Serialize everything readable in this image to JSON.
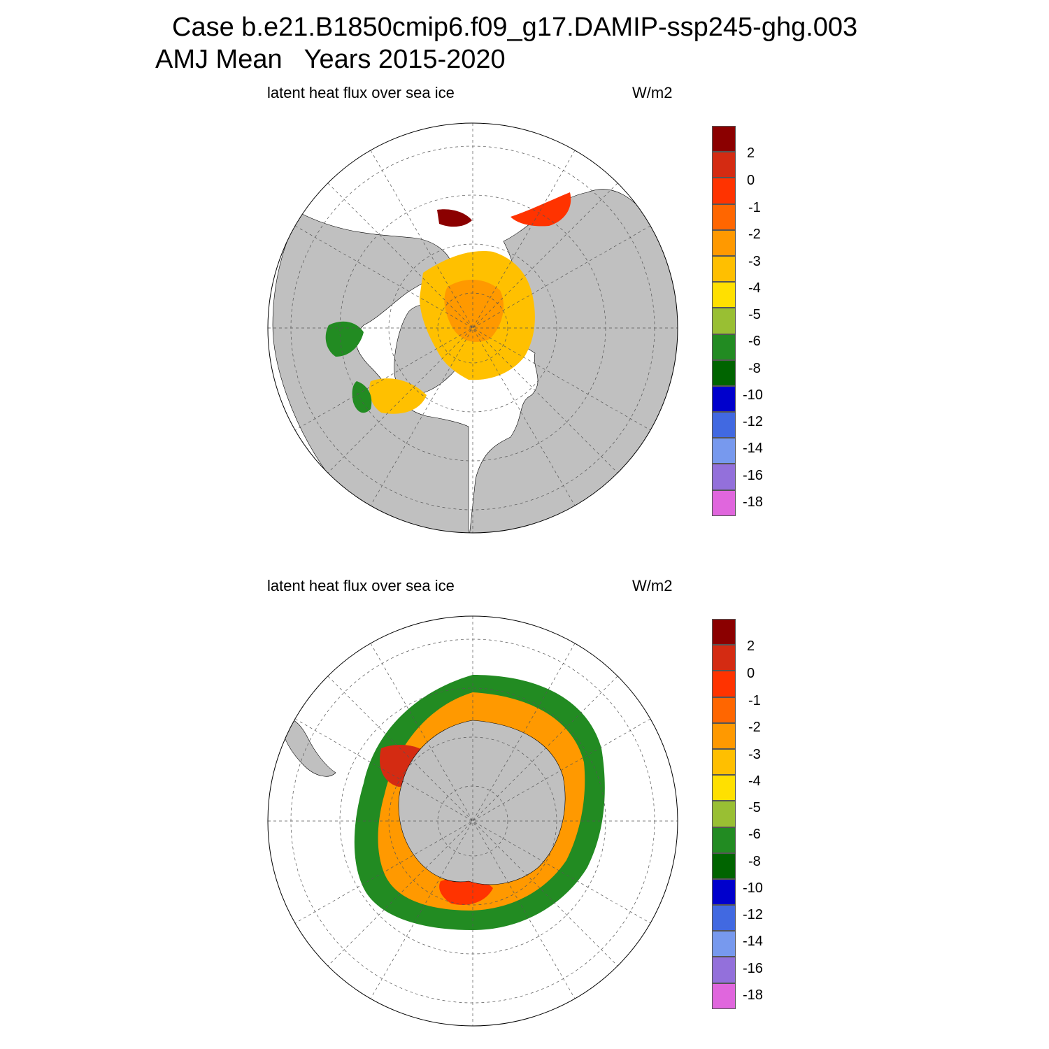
{
  "title": {
    "line1": "Case b.e21.B1850cmip6.f09_g17.DAMIP-ssp245-ghg.003",
    "line2": "AMJ Mean   Years 2015-2020"
  },
  "panels": [
    {
      "hemisphere": "north",
      "variable_label": "latent heat flux over sea ice",
      "units_label": "W/m2"
    },
    {
      "hemisphere": "south",
      "variable_label": "latent heat flux over sea ice",
      "units_label": "W/m2"
    }
  ],
  "colorbar": {
    "labels": [
      "2",
      "0",
      "-1",
      "-2",
      "-3",
      "-4",
      "-5",
      "-6",
      "-8",
      "-10",
      "-12",
      "-14",
      "-16",
      "-18"
    ],
    "colors": [
      "#8b0000",
      "#d42b12",
      "#ff3300",
      "#ff6600",
      "#ff9900",
      "#ffbf00",
      "#ffe000",
      "#99bf33",
      "#228b22",
      "#006400",
      "#0000cc",
      "#4169e1",
      "#7799ee",
      "#9370db",
      "#e066dd"
    ]
  },
  "map_colors": {
    "land": "#c0c0c0",
    "ocean": "#ffffff",
    "grid": "#555555"
  }
}
